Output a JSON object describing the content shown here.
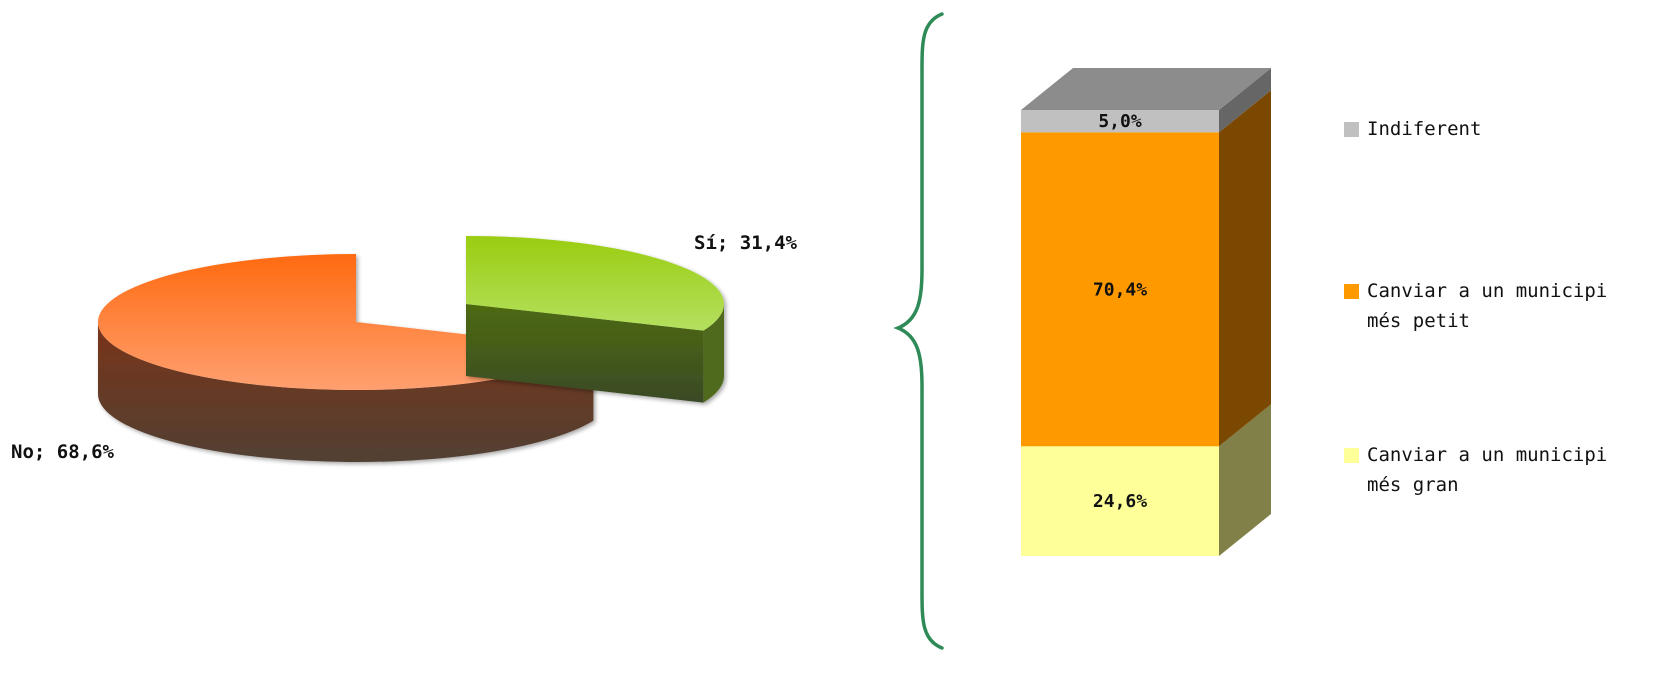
{
  "chart_data": [
    {
      "type": "pie",
      "title": "",
      "slices": [
        {
          "name": "Sí",
          "value": 31.4,
          "label": "Sí; 31,4%",
          "color": "#a6d832"
        },
        {
          "name": "No",
          "value": 68.6,
          "label": "No; 68,6%",
          "color": "#ff8c3c"
        }
      ]
    },
    {
      "type": "bar",
      "title": "",
      "stacked": true,
      "categories": [
        ""
      ],
      "series": [
        {
          "name": "Canviar a un municipi més gran",
          "legend": [
            "Canviar a un municipi",
            "més gran"
          ],
          "values": [
            24.6
          ],
          "label": "24,6%",
          "color": "#ffff99"
        },
        {
          "name": "Canviar a un municipi més petit",
          "legend": [
            "Canviar a un municipi",
            "més petit"
          ],
          "values": [
            70.4
          ],
          "label": "70,4%",
          "color": "#ff9900"
        },
        {
          "name": "Indiferent",
          "legend": [
            "Indiferent"
          ],
          "values": [
            5.0
          ],
          "label": "5,0%",
          "color": "#c0c0c0"
        }
      ],
      "ylim": [
        0,
        100
      ],
      "legend_position": "right"
    }
  ],
  "connector": {
    "type": "curly-brace",
    "color": "#2e8b57"
  }
}
